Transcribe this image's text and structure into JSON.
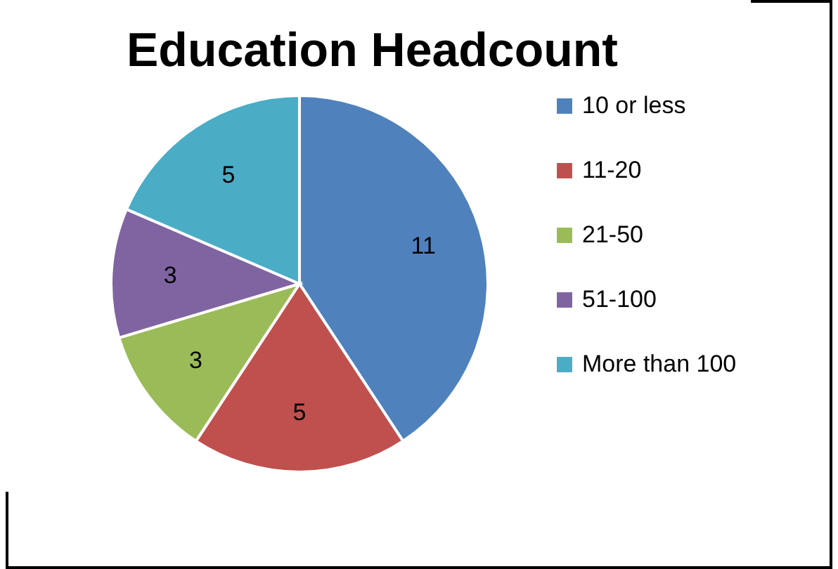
{
  "chart_data": {
    "type": "pie",
    "title": "Education Headcount",
    "categories": [
      "10 or less",
      "11-20",
      "21-50",
      "51-100",
      "More than 100"
    ],
    "values": [
      11,
      5,
      3,
      3,
      5
    ],
    "colors": [
      "#4f81bd",
      "#c0504d",
      "#9bbb59",
      "#8064a2",
      "#4bacc6"
    ],
    "data_labels": true,
    "legend": "right"
  }
}
